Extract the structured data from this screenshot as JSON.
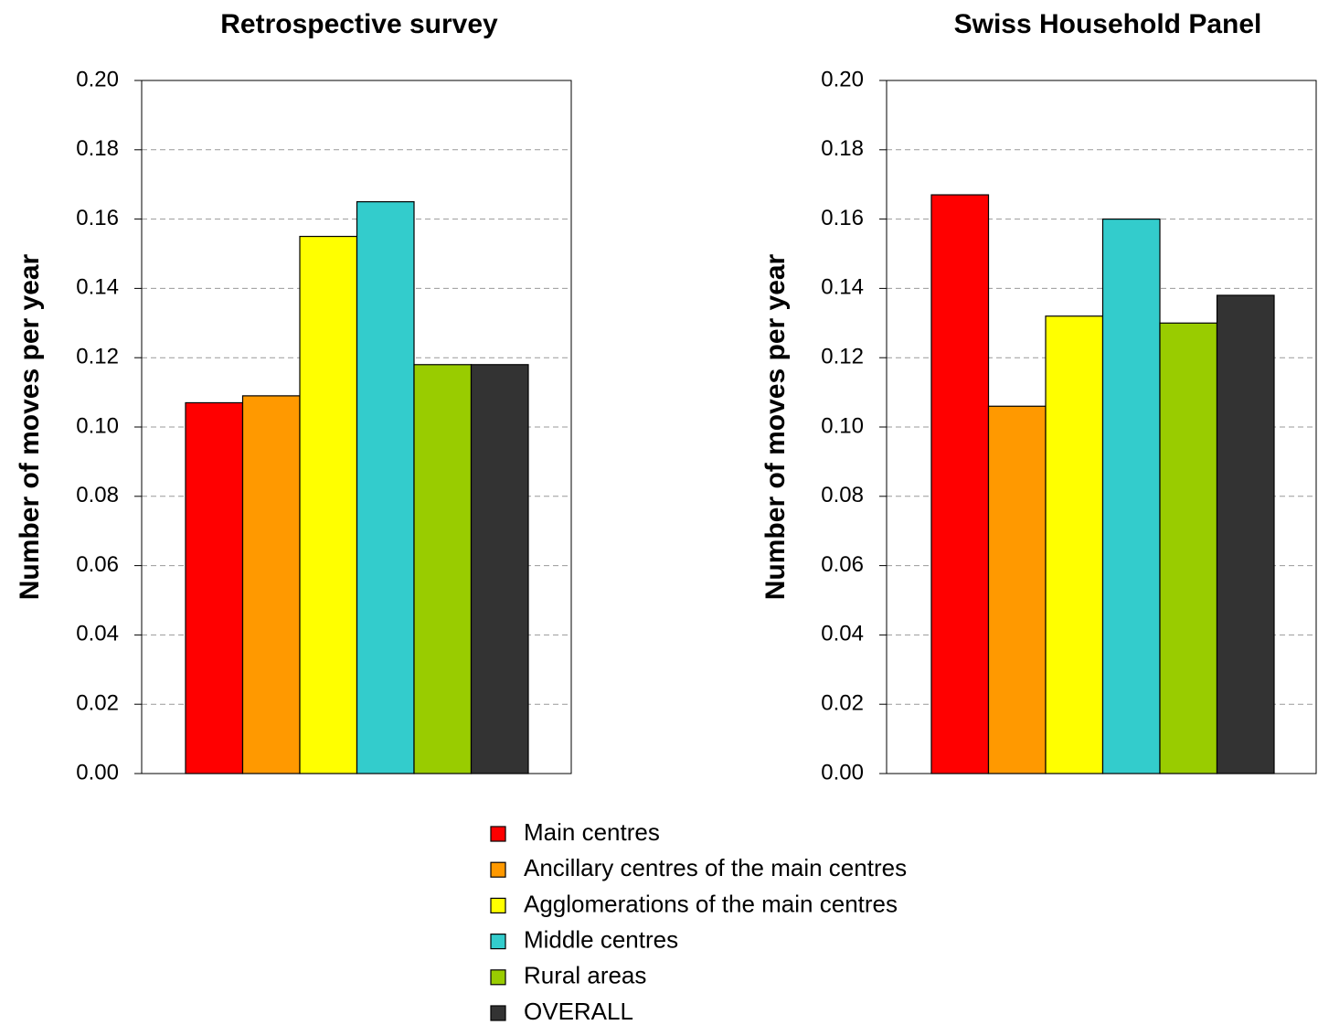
{
  "chart_data": [
    {
      "type": "bar",
      "title": "Retrospective survey",
      "y_label": "Number of moves per year",
      "series": [
        {
          "name": "Main centres",
          "color": "#ff0000",
          "values": [
            0.107
          ]
        },
        {
          "name": "Ancillary centres of the main centres",
          "color": "#ff9900",
          "values": [
            0.109
          ]
        },
        {
          "name": "Agglomerations of the main centres",
          "color": "#ffff00",
          "values": [
            0.155
          ]
        },
        {
          "name": "Middle centres",
          "color": "#33cccc",
          "values": [
            0.165
          ]
        },
        {
          "name": "Rural areas",
          "color": "#99cc00",
          "values": [
            0.118
          ]
        },
        {
          "name": "OVERALL",
          "color": "#333333",
          "values": [
            0.118
          ]
        }
      ],
      "ylim": [
        0,
        0.2
      ],
      "yticks": [
        {
          "value": 0,
          "label": "0.00"
        },
        {
          "value": 0.02,
          "label": "0.02"
        },
        {
          "value": 0.04,
          "label": "0.04"
        },
        {
          "value": 0.06,
          "label": "0.06"
        },
        {
          "value": 0.08,
          "label": "0.08"
        },
        {
          "value": 0.1,
          "label": "0.10"
        },
        {
          "value": 0.12,
          "label": "0.12"
        },
        {
          "value": 0.14,
          "label": "0.14"
        },
        {
          "value": 0.16,
          "label": "0.16"
        },
        {
          "value": 0.18,
          "label": "0.18"
        },
        {
          "value": 0.2,
          "label": "0.20"
        }
      ],
      "grid": true
    },
    {
      "type": "bar",
      "title": "Swiss Household Panel",
      "y_label": "Number of moves per year",
      "series": [
        {
          "color": "#ff0000",
          "values": [
            0.167
          ]
        },
        {
          "color": "#ff9900",
          "values": [
            0.106
          ]
        },
        {
          "color": "#ffff00",
          "values": [
            0.132
          ]
        },
        {
          "color": "#33cccc",
          "values": [
            0.16
          ]
        },
        {
          "color": "#99cc00",
          "values": [
            0.13
          ]
        },
        {
          "color": "#333333",
          "values": [
            0.138
          ]
        }
      ],
      "ylim": [
        0,
        0.2
      ],
      "yticks": [
        {
          "value": 0,
          "label": "0.00"
        },
        {
          "value": 0.02,
          "label": "0.02"
        },
        {
          "value": 0.04,
          "label": "0.04"
        },
        {
          "value": 0.06,
          "label": "0.06"
        },
        {
          "value": 0.08,
          "label": "0.08"
        },
        {
          "value": 0.1,
          "label": "0.10"
        },
        {
          "value": 0.12,
          "label": "0.12"
        },
        {
          "value": 0.14,
          "label": "0.14"
        },
        {
          "value": 0.16,
          "label": "0.16"
        },
        {
          "value": 0.18,
          "label": "0.18"
        },
        {
          "value": 0.2,
          "label": "0.20"
        }
      ],
      "grid": true
    }
  ]
}
